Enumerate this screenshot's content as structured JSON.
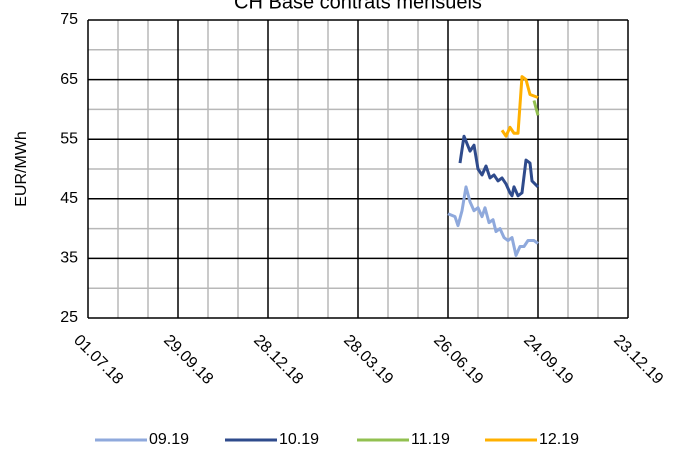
{
  "chart_data": {
    "type": "line",
    "title": "CH Base contrats mensuels",
    "y_label": "EUR/MWh",
    "xlim": [
      "01.07.18",
      "23.12.19"
    ],
    "xticks": [
      "01.07.18",
      "29.09.18",
      "28.12.18",
      "28.03.19",
      "26.06.19",
      "24.09.19",
      "23.12.19"
    ],
    "ylim": [
      25,
      75
    ],
    "yticks": [
      25,
      35,
      45,
      55,
      65,
      75
    ],
    "grid": true,
    "legend": "bottom",
    "series": [
      {
        "name": "09.19",
        "color": "#8fa9dc",
        "x": [
          "26.06.19",
          "03.07.19",
          "06.07.19",
          "10.07.19",
          "14.07.19",
          "18.07.19",
          "22.07.19",
          "26.07.19",
          "30.07.19",
          "02.08.19",
          "06.08.19",
          "10.08.19",
          "13.08.19",
          "17.08.19",
          "21.08.19",
          "25.08.19",
          "29.08.19",
          "02.09.19",
          "06.09.19",
          "10.09.19",
          "14.09.19",
          "20.09.19",
          "24.09.19"
        ],
        "values": [
          42.5,
          42,
          40.5,
          43,
          47,
          44.5,
          43,
          43.5,
          42,
          43.5,
          41,
          41.5,
          39.5,
          40,
          38.5,
          38,
          38.5,
          35.5,
          37,
          37,
          38,
          38,
          37.5
        ]
      },
      {
        "name": "10.19",
        "color": "#2f4b8c",
        "x": [
          "08.07.19",
          "12.07.19",
          "18.07.19",
          "22.07.19",
          "26.07.19",
          "30.07.19",
          "03.08.19",
          "07.08.19",
          "11.08.19",
          "15.08.19",
          "19.08.19",
          "23.08.19",
          "27.08.19",
          "29.08.19",
          "31.08.19",
          "04.09.19",
          "08.09.19",
          "12.09.19",
          "16.09.19",
          "18.09.19",
          "24.09.19"
        ],
        "values": [
          51,
          55.5,
          53,
          54,
          50,
          49,
          50.5,
          48.5,
          49,
          48,
          48.5,
          47.5,
          46,
          45.5,
          47,
          45.5,
          46,
          51.5,
          51,
          48,
          47
        ]
      },
      {
        "name": "11.19",
        "color": "#92c050",
        "x": [
          "20.09.19",
          "24.09.19"
        ],
        "values": [
          61.5,
          59
        ]
      },
      {
        "name": "12.19",
        "color": "#ffb000",
        "x": [
          "19.08.19",
          "23.08.19",
          "27.08.19",
          "31.08.19",
          "04.09.19",
          "08.09.19",
          "12.09.19",
          "16.09.19",
          "24.09.19"
        ],
        "values": [
          56.5,
          55.5,
          57,
          56,
          56,
          65.5,
          65,
          62.5,
          62
        ]
      }
    ]
  }
}
